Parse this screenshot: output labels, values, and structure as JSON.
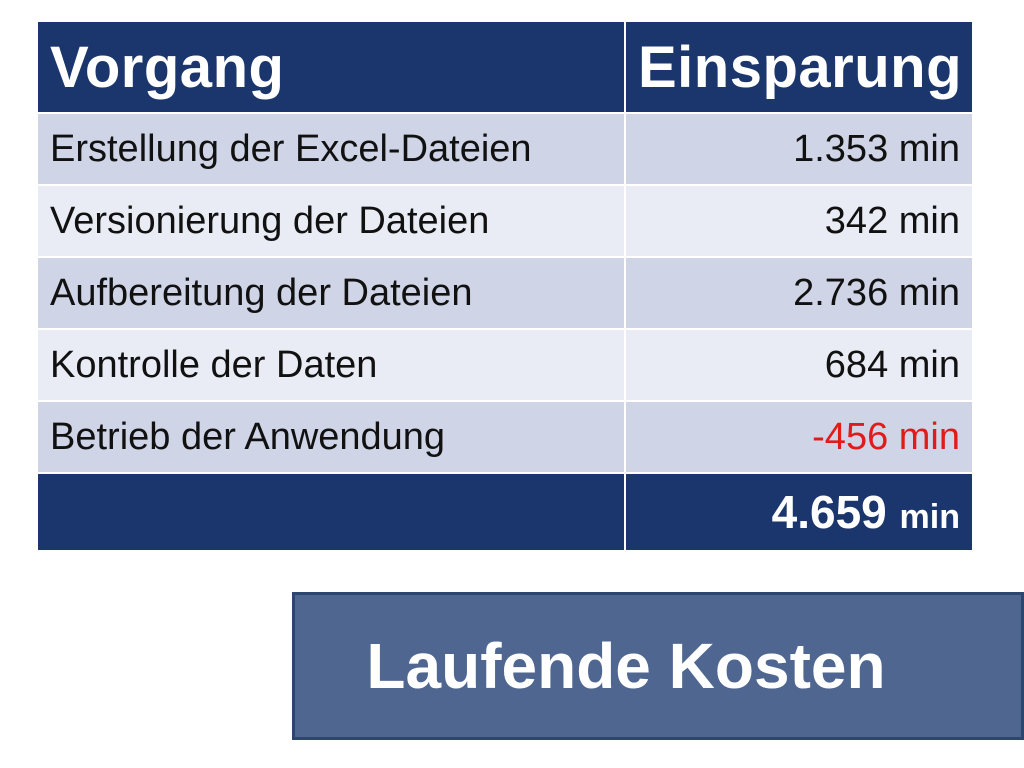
{
  "table": {
    "headers": [
      "Vorgang",
      "Einsparung"
    ],
    "rows": [
      {
        "label": "Erstellung der Excel-Dateien",
        "value": "1.353 min"
      },
      {
        "label": "Versionierung der Dateien",
        "value": "342 min"
      },
      {
        "label": "Aufbereitung der Dateien",
        "value": "2.736 min"
      },
      {
        "label": "Kontrolle der Daten",
        "value": "684 min"
      },
      {
        "label": "Betrieb der Anwendung",
        "value": "-456 min"
      }
    ],
    "total": {
      "value": "4.659",
      "unit": "min"
    }
  },
  "banner": {
    "label": "Laufende Kosten"
  },
  "colors": {
    "header_bg": "#1b366d",
    "row_odd": "#cfd5e6",
    "row_even": "#e9ecf4",
    "negative": "#e21a1a",
    "banner_bg": "#4f6691"
  }
}
